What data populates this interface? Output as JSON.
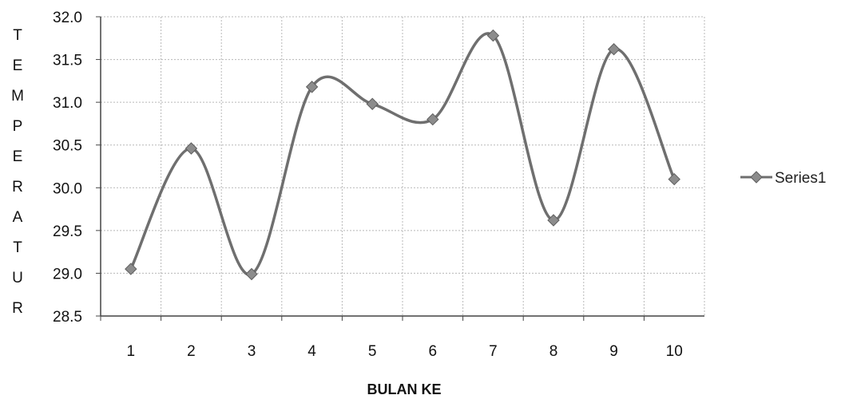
{
  "chart_data": {
    "type": "line",
    "smooth": true,
    "title": "",
    "xlabel": "BULAN KE",
    "ylabel": "TEMPERATUR",
    "categories": [
      "1",
      "2",
      "3",
      "4",
      "5",
      "6",
      "7",
      "8",
      "9",
      "10"
    ],
    "series": [
      {
        "name": "Series1",
        "values": [
          29.05,
          30.46,
          28.99,
          31.18,
          30.98,
          30.8,
          31.78,
          29.62,
          31.62,
          30.1
        ],
        "marker": "diamond",
        "color": "#6f6f6f"
      }
    ],
    "ylim": [
      28.5,
      32.0
    ],
    "yticks": [
      "28.5",
      "29.0",
      "29.5",
      "30.0",
      "30.5",
      "31.0",
      "31.5",
      "32.0"
    ],
    "grid": true,
    "legend_position": "right"
  }
}
